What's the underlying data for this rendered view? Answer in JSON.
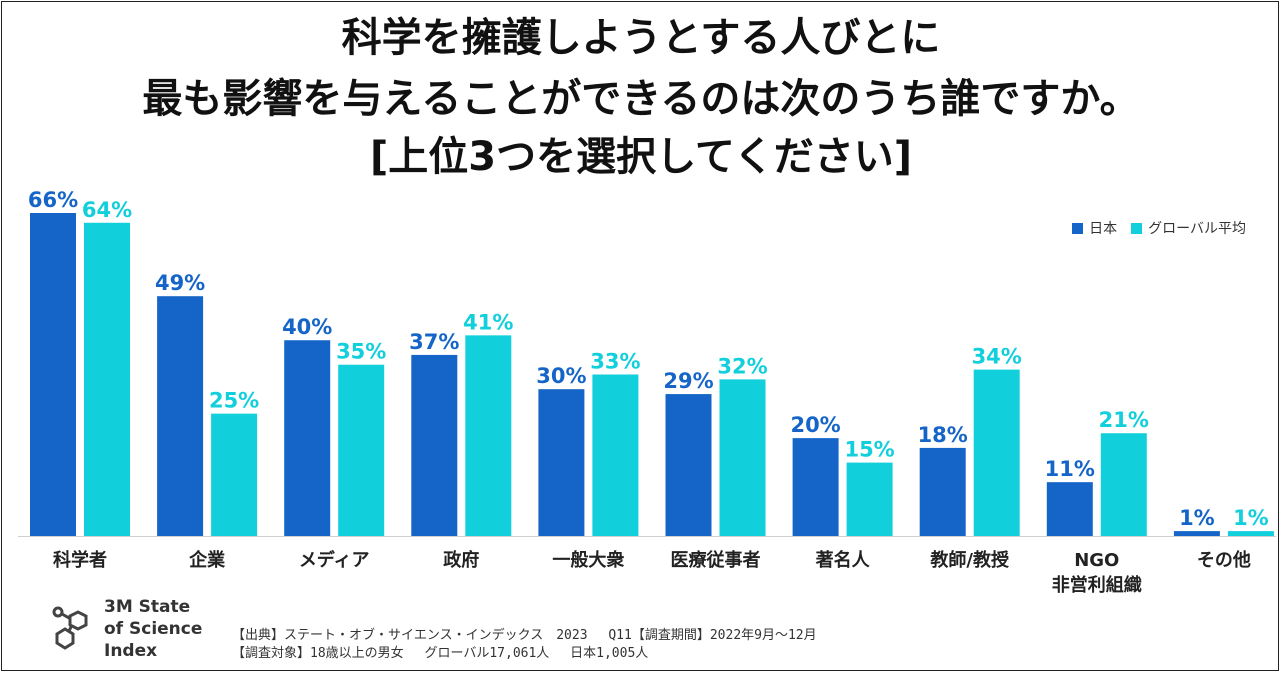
{
  "title": {
    "line1": "科学を擁護しようとする人びとに",
    "line2": "最も影響を与えることができるのは次のうち誰ですか。",
    "line3": "[上位3つを選択してください]"
  },
  "colors": {
    "japan": "#1565c8",
    "global": "#12cfdc"
  },
  "chart_data": {
    "type": "bar",
    "title": "科学を擁護しようとする人びとに最も影響を与えることができるのは次のうち誰ですか。[上位3つを選択してください]",
    "xlabel": "",
    "ylabel": "",
    "ylim": [
      0,
      70
    ],
    "grid": false,
    "legend_position": "top-right",
    "categories": [
      "科学者",
      "企業",
      "メディア",
      "政府",
      "一般大衆",
      "医療従事者",
      "著名人",
      "教師/教授",
      "NGO\n非営利組織",
      "その他"
    ],
    "series": [
      {
        "name": "日本",
        "values": [
          66,
          49,
          40,
          37,
          30,
          29,
          20,
          18,
          11,
          1
        ]
      },
      {
        "name": "グローバル平均",
        "values": [
          64,
          25,
          35,
          41,
          33,
          32,
          15,
          34,
          21,
          1
        ]
      }
    ],
    "value_suffix": "%"
  },
  "logo": {
    "line1": "3M State",
    "line2": "of Science",
    "line3": "Index"
  },
  "source": {
    "line1": "【出典】ステート・オブ・サイエンス・インデックス　2023　 Q11【調査期間】2022年9月～12月",
    "line2": "【調査対象】18歳以上の男女　 グローバル17,061人　 日本1,005人"
  }
}
